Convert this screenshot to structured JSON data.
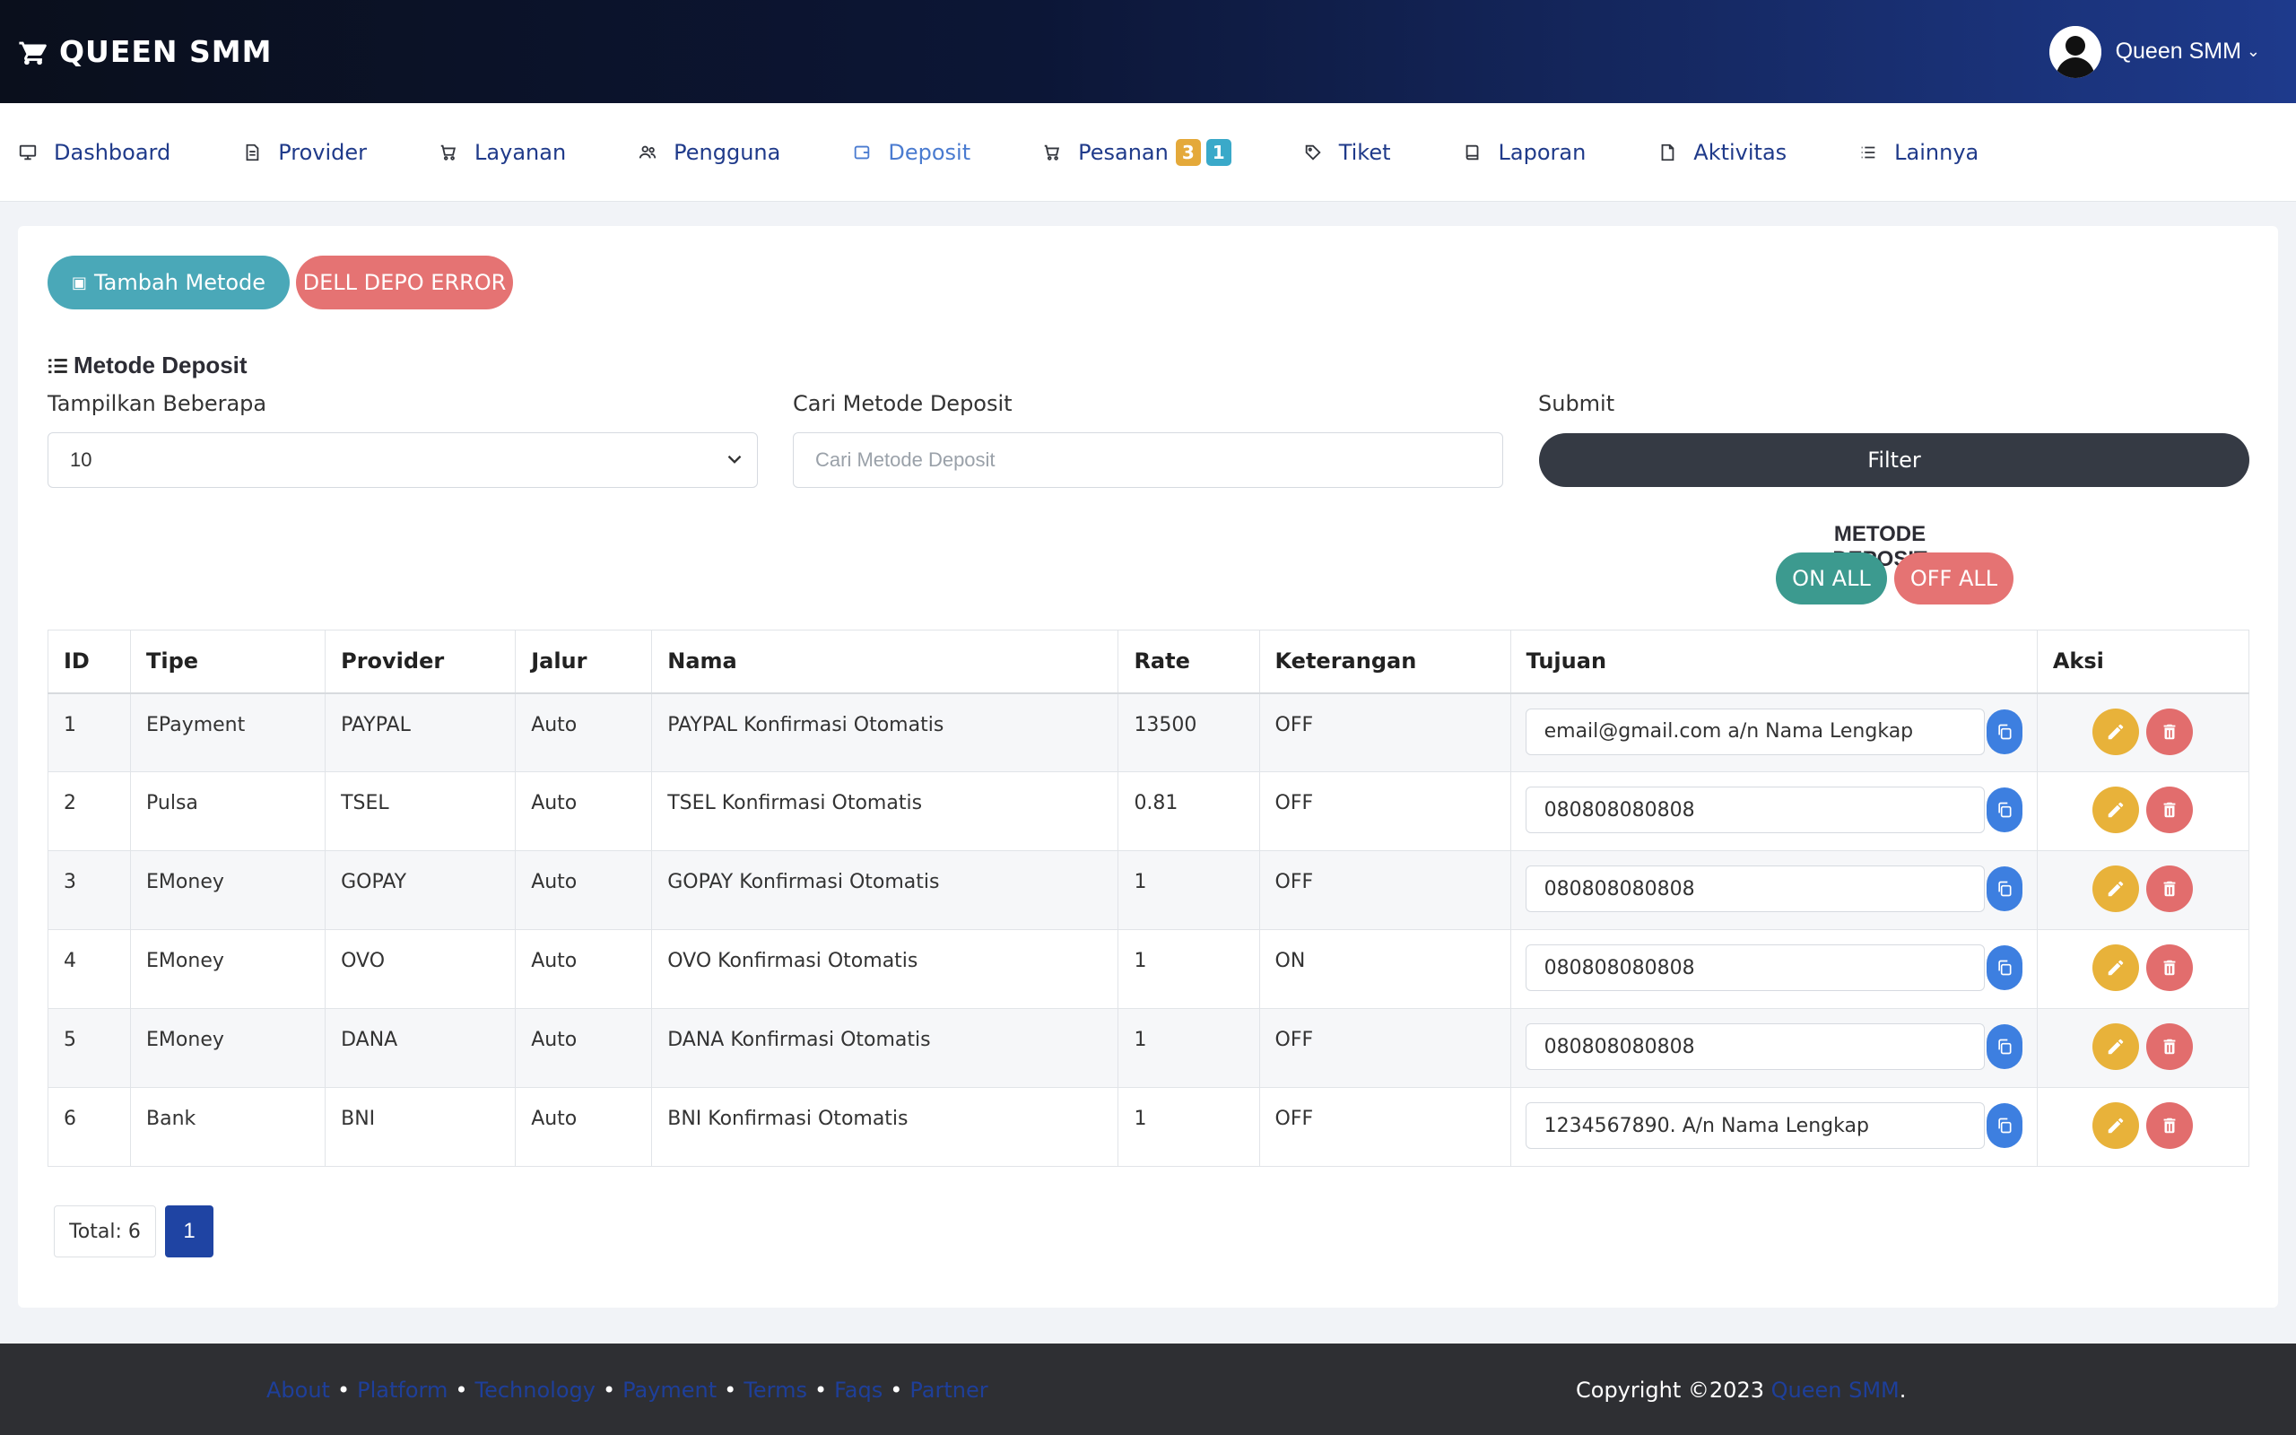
{
  "header": {
    "brand": "QUEEN SMM",
    "user_name": "Queen SMM"
  },
  "nav": [
    {
      "label": "Dashboard",
      "icon": "monitor-icon"
    },
    {
      "label": "Provider",
      "icon": "file-icon"
    },
    {
      "label": "Layanan",
      "icon": "cart-icon"
    },
    {
      "label": "Pengguna",
      "icon": "users-icon"
    },
    {
      "label": "Deposit",
      "icon": "wallet-icon",
      "active": true
    },
    {
      "label": "Pesanan",
      "icon": "cart-icon",
      "badges": [
        "3",
        "1"
      ]
    },
    {
      "label": "Tiket",
      "icon": "tag-icon"
    },
    {
      "label": "Laporan",
      "icon": "book-icon"
    },
    {
      "label": "Aktivitas",
      "icon": "document-icon"
    },
    {
      "label": "Lainnya",
      "icon": "list-icon"
    }
  ],
  "actions": {
    "add_method": "Tambah Metode",
    "delete_error": "DELL DEPO ERROR"
  },
  "section": {
    "title": "Metode Deposit"
  },
  "filters": {
    "show_label": "Tampilkan Beberapa",
    "show_value": "10",
    "search_label": "Cari Metode Deposit",
    "search_placeholder": "Cari Metode Deposit",
    "submit_label": "Submit",
    "filter_button": "Filter"
  },
  "method_toggle": {
    "title": "METODE DEPOSIT",
    "on_all": "ON ALL",
    "off_all": "OFF ALL"
  },
  "table": {
    "headers": [
      "ID",
      "Tipe",
      "Provider",
      "Jalur",
      "Nama",
      "Rate",
      "Keterangan",
      "Tujuan",
      "Aksi"
    ],
    "rows": [
      {
        "id": "1",
        "tipe": "EPayment",
        "provider": "PAYPAL",
        "jalur": "Auto",
        "nama": "PAYPAL Konfirmasi Otomatis",
        "rate": "13500",
        "keterangan": "OFF",
        "tujuan": "email@gmail.com a/n Nama Lengkap"
      },
      {
        "id": "2",
        "tipe": "Pulsa",
        "provider": "TSEL",
        "jalur": "Auto",
        "nama": "TSEL Konfirmasi Otomatis",
        "rate": "0.81",
        "keterangan": "OFF",
        "tujuan": "080808080808"
      },
      {
        "id": "3",
        "tipe": "EMoney",
        "provider": "GOPAY",
        "jalur": "Auto",
        "nama": "GOPAY Konfirmasi Otomatis",
        "rate": "1",
        "keterangan": "OFF",
        "tujuan": "080808080808"
      },
      {
        "id": "4",
        "tipe": "EMoney",
        "provider": "OVO",
        "jalur": "Auto",
        "nama": "OVO Konfirmasi Otomatis",
        "rate": "1",
        "keterangan": "ON",
        "tujuan": "080808080808"
      },
      {
        "id": "5",
        "tipe": "EMoney",
        "provider": "DANA",
        "jalur": "Auto",
        "nama": "DANA Konfirmasi Otomatis",
        "rate": "1",
        "keterangan": "OFF",
        "tujuan": "080808080808"
      },
      {
        "id": "6",
        "tipe": "Bank",
        "provider": "BNI",
        "jalur": "Auto",
        "nama": "BNI Konfirmasi Otomatis",
        "rate": "1",
        "keterangan": "OFF",
        "tujuan": "1234567890. A/n Nama Lengkap"
      }
    ]
  },
  "pagination": {
    "total": "Total: 6",
    "current": "1"
  },
  "footer": {
    "links": [
      "About",
      "Platform",
      "Technology",
      "Payment",
      "Terms",
      "Faqs",
      "Partner"
    ],
    "separator": "•",
    "copyright_prefix": "Copyright ©2023 ",
    "copyright_brand": "Queen SMM",
    "copyright_suffix": "."
  },
  "colors": {
    "accent": "#1f3a8a",
    "teal": "#4aa8b8",
    "danger": "#e57373",
    "on_green": "#3c9a8f",
    "warning": "#e8b23a",
    "copy_blue": "#3d7fe0"
  }
}
